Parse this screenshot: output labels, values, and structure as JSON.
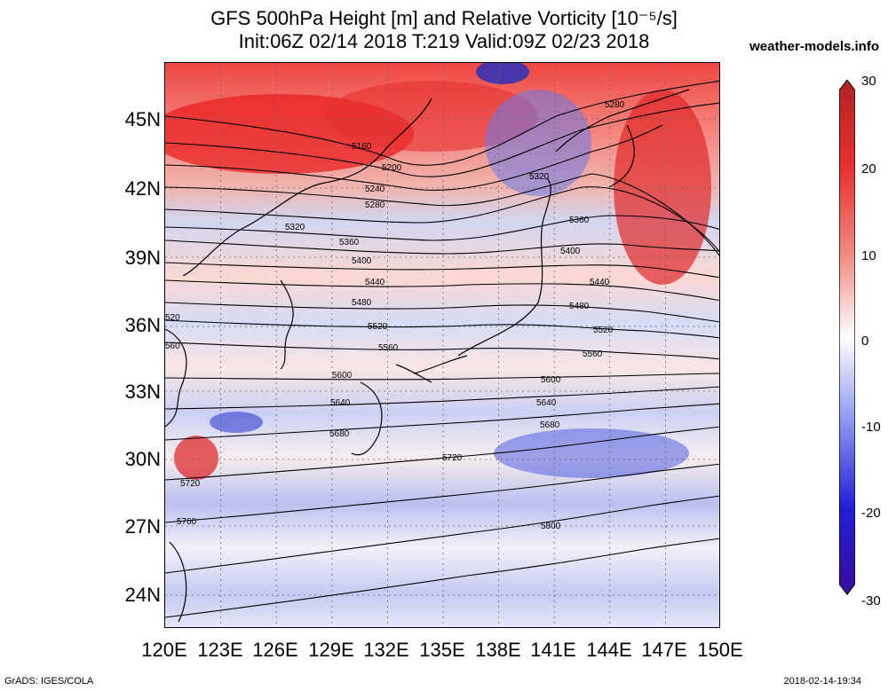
{
  "title_line1": "GFS 500hPa Height [m] and Relative Vorticity [10⁻⁵/s]",
  "title_line2": "Init:06Z 02/14 2018 T:219 Valid:09Z 02/23 2018",
  "site": "weather-models.info",
  "lat_labels": [
    "45N",
    "42N",
    "39N",
    "36N",
    "33N",
    "30N",
    "27N",
    "24N"
  ],
  "lon_labels": [
    "120E",
    "123E",
    "126E",
    "129E",
    "132E",
    "135E",
    "138E",
    "141E",
    "144E",
    "147E",
    "150E"
  ],
  "colorbar": {
    "labels": [
      "30",
      "20",
      "10",
      "0",
      "-10",
      "-20",
      "-30"
    ],
    "colors": [
      "#b22222",
      "#e83030",
      "#f08a80",
      "#ffffff",
      "#8c9af0",
      "#2020d8",
      "#3a0a9a"
    ]
  },
  "contour_labels": [
    "5160",
    "5200",
    "5240",
    "5280",
    "5280",
    "5320",
    "5320",
    "5360",
    "5360",
    "5400",
    "5400",
    "5440",
    "5440",
    "5480",
    "5480",
    "520",
    "5520",
    "5520",
    "560",
    "5560",
    "5560",
    "5600",
    "5600",
    "5640",
    "5640",
    "5680",
    "5680",
    "5720",
    "5720",
    "5760",
    "5800"
  ],
  "footer_left": "GrADS: IGES/COLA",
  "footer_right": "2018-02-14-19:34"
}
